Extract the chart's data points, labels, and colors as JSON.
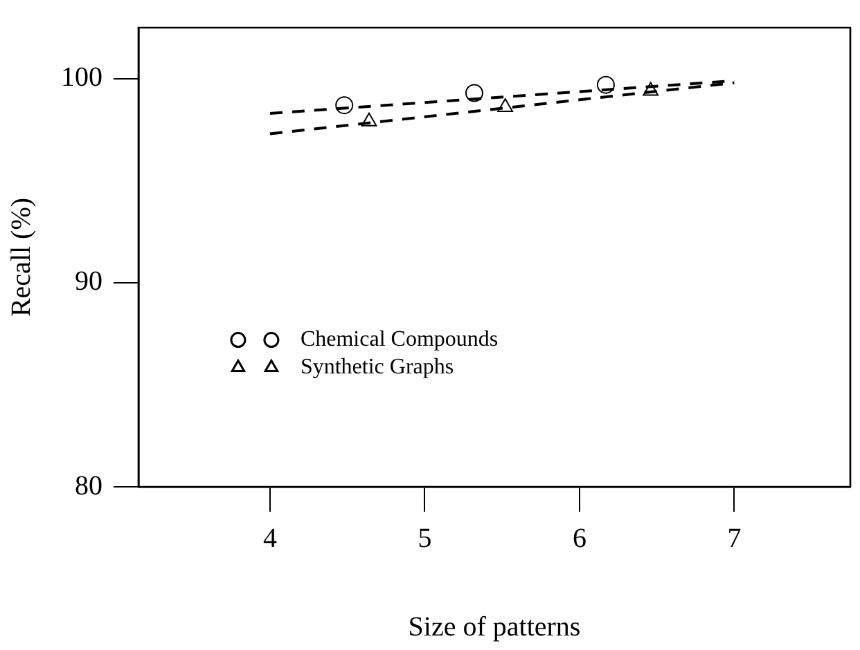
{
  "chart_data": {
    "type": "line",
    "xlabel": "Size of patterns",
    "ylabel": "Recall (%)",
    "xlim": [
      3.15,
      7.75
    ],
    "xticks": [
      4,
      5,
      6,
      7
    ],
    "ylim": [
      80,
      102.5
    ],
    "yticks": [
      80,
      90,
      100
    ],
    "series": [
      {
        "color": "#000000",
        "line_style": "dashed",
        "marker": "none",
        "x": [
          4,
          7
        ],
        "values": [
          98.3,
          99.9
        ]
      },
      {
        "color": "#000000",
        "line_style": "dashed",
        "marker": "none",
        "x": [
          4,
          7
        ],
        "values": [
          97.3,
          99.8
        ]
      },
      {
        "type": "scatter",
        "name": "Chemical Compounds",
        "color": "#000000",
        "marker": "circle",
        "x": [
          4.48,
          5.32,
          6.17
        ],
        "values": [
          98.7,
          99.3,
          99.7
        ]
      },
      {
        "type": "scatter",
        "name": "Synthetic Graphs",
        "color": "#000000",
        "marker": "triangle",
        "x": [
          4.64,
          5.52,
          6.46
        ],
        "values": [
          97.9,
          98.6,
          99.4
        ]
      }
    ],
    "legend": "center left",
    "grid": false
  }
}
